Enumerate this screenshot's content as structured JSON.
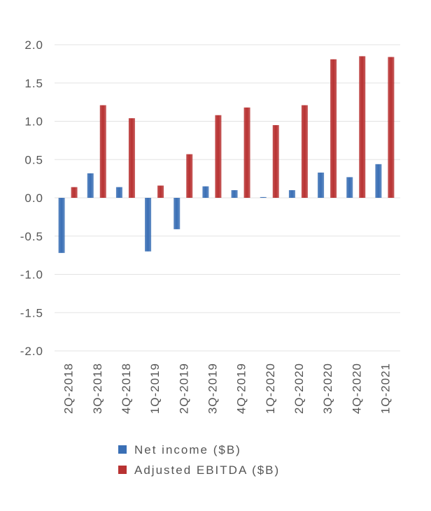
{
  "chart_data": {
    "type": "bar",
    "categories": [
      "2Q-2018",
      "3Q-2018",
      "4Q-2018",
      "1Q-2019",
      "2Q-2019",
      "3Q-2019",
      "4Q-2019",
      "1Q-2020",
      "2Q-2020",
      "3Q-2020",
      "4Q-2020",
      "1Q-2021"
    ],
    "series": [
      {
        "name": "Net income ($B)",
        "color": "#3a6fb5",
        "values": [
          -0.72,
          0.32,
          0.14,
          -0.7,
          -0.41,
          0.15,
          0.1,
          0.01,
          0.1,
          0.33,
          0.27,
          0.44
        ]
      },
      {
        "name": "Adjusted EBITDA ($B)",
        "color": "#b83232",
        "values": [
          0.14,
          1.21,
          1.04,
          0.16,
          0.57,
          1.08,
          1.18,
          0.95,
          1.21,
          1.81,
          1.85,
          1.84
        ]
      }
    ],
    "ylim": [
      -2.0,
      2.0
    ],
    "yticks": [
      "2.0",
      "1.5",
      "1.0",
      "0.5",
      "0.0",
      "-0.5",
      "-1.0",
      "-1.5",
      "-2.0"
    ],
    "grid": true,
    "legend_position": "bottom",
    "title": "",
    "xlabel": "",
    "ylabel": ""
  }
}
